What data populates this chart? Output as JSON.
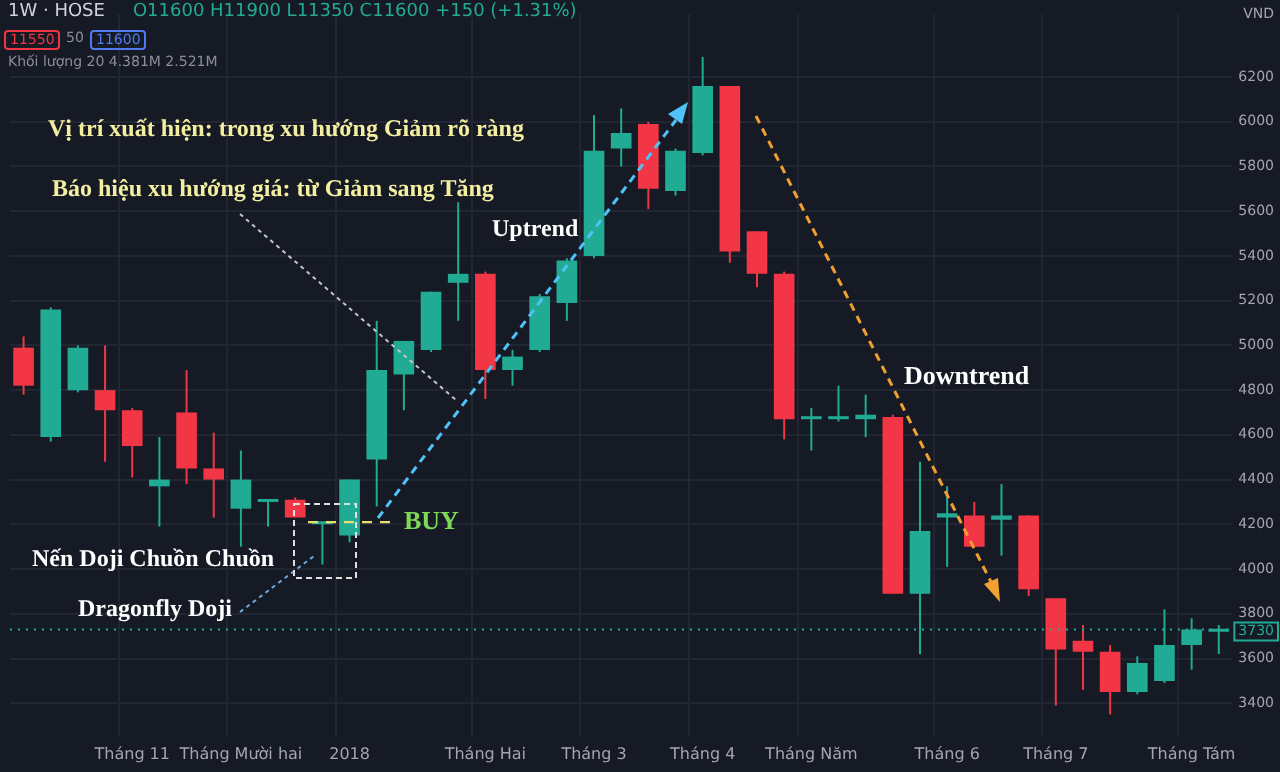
{
  "chart_data": {
    "type": "candlestick",
    "title": "1W · HOSE",
    "subtitle": "O11600 H11900 L11350 C11600 +150 (+1.31%)",
    "ylabel": "VND",
    "annotations": [
      "Vị trí xuất hiện: trong xu hướng Giảm rõ ràng",
      "Báo hiệu xu hướng giá: từ Giảm sang Tăng",
      "Uptrend",
      "Downtrend",
      "Nến Doji Chuồn Chuồn",
      "Dragonfly Doji",
      "Khối lượng 20  4.381M  2.521M",
      "11550",
      "50",
      "11600"
    ],
    "categories": [
      null,
      null,
      null,
      null,
      "Tháng 11",
      null,
      null,
      null,
      "Tháng Mười hai",
      null,
      null,
      null,
      "2018",
      null,
      null,
      null,
      null,
      "Tháng Hai",
      null,
      null,
      null,
      "Tháng 3",
      null,
      null,
      null,
      "Tháng 4",
      null,
      null,
      null,
      "Tháng Năm",
      null,
      null,
      null,
      null,
      "Tháng 6",
      null,
      null,
      null,
      "Tháng 7",
      null,
      null,
      null,
      null,
      "Tháng Tám",
      null
    ],
    "ohlc": [
      [
        4990,
        5040,
        4780,
        4820
      ],
      [
        4590,
        5170,
        4570,
        5160
      ],
      [
        4800,
        5000,
        4790,
        4990
      ],
      [
        4800,
        5000,
        4480,
        4710
      ],
      [
        4710,
        4720,
        4410,
        4550
      ],
      [
        4370,
        4590,
        4190,
        4400
      ],
      [
        4700,
        4890,
        4380,
        4450
      ],
      [
        4450,
        4610,
        4230,
        4400
      ],
      [
        4270,
        4530,
        4100,
        4400
      ],
      [
        4300,
        4310,
        4190,
        4310
      ],
      [
        4310,
        4320,
        4230,
        4230
      ],
      [
        4200,
        4210,
        4020,
        4210
      ],
      [
        4150,
        4400,
        4120,
        4400
      ],
      [
        4490,
        5110,
        4280,
        4890
      ],
      [
        4870,
        5020,
        4710,
        5020
      ],
      [
        4980,
        5240,
        4970,
        5240
      ],
      [
        5280,
        5640,
        5110,
        5320
      ],
      [
        5320,
        5330,
        4760,
        4890
      ],
      [
        4890,
        4980,
        4820,
        4950
      ],
      [
        4980,
        5230,
        4970,
        5220
      ],
      [
        5190,
        5390,
        5110,
        5380
      ],
      [
        5400,
        6030,
        5390,
        5870
      ],
      [
        5880,
        6060,
        5800,
        5950
      ],
      [
        5990,
        6000,
        5610,
        5700
      ],
      [
        5690,
        5880,
        5670,
        5870
      ],
      [
        5860,
        6290,
        5850,
        6160
      ],
      [
        6160,
        6160,
        5370,
        5420
      ],
      [
        5510,
        5510,
        5260,
        5320
      ],
      [
        5320,
        5330,
        4580,
        4670
      ],
      [
        4670,
        4720,
        4530,
        4680
      ],
      [
        4670,
        4820,
        4660,
        4680
      ],
      [
        4670,
        4780,
        4590,
        4690
      ],
      [
        4680,
        4690,
        3890,
        3890
      ],
      [
        3890,
        4480,
        3620,
        4170
      ],
      [
        4230,
        4370,
        4010,
        4250
      ],
      [
        4240,
        4300,
        4100,
        4100
      ],
      [
        4220,
        4380,
        4060,
        4240
      ],
      [
        4240,
        4240,
        3880,
        3910
      ],
      [
        3870,
        3870,
        3390,
        3640
      ],
      [
        3680,
        3750,
        3460,
        3630
      ],
      [
        3630,
        3660,
        3350,
        3450
      ],
      [
        3450,
        3610,
        3440,
        3580
      ],
      [
        3500,
        3820,
        3490,
        3660
      ],
      [
        3660,
        3780,
        3550,
        3730
      ],
      [
        3720,
        3750,
        3620,
        3730
      ]
    ],
    "colors": [
      "#f23645",
      "#22ab94",
      "#22ab94",
      "#f23645",
      "#f23645",
      "#22ab94",
      "#f23645",
      "#f23645",
      "#22ab94",
      "#22ab94",
      "#f23645",
      "#22ab94",
      "#22ab94",
      "#22ab94",
      "#22ab94",
      "#22ab94",
      "#22ab94",
      "#f23645",
      "#22ab94",
      "#22ab94",
      "#22ab94",
      "#22ab94",
      "#22ab94",
      "#f23645",
      "#22ab94",
      "#22ab94",
      "#f23645",
      "#f23645",
      "#f23645",
      "#22ab94",
      "#22ab94",
      "#22ab94",
      "#f23645",
      "#22ab94",
      "#22ab94",
      "#f23645",
      "#22ab94",
      "#f23645",
      "#f23645",
      "#f23645",
      "#f23645",
      "#22ab94",
      "#22ab94",
      "#22ab94",
      "#22ab94"
    ],
    "ylim": [
      3250,
      6480
    ],
    "yticks": [
      3400,
      3600,
      3800,
      4000,
      4200,
      4400,
      4600,
      4800,
      5000,
      5200,
      5400,
      5600,
      5800,
      6000,
      6200
    ],
    "grid": true,
    "ref_lines": [
      {
        "axis": "y",
        "value": 3730,
        "label": "3730",
        "color": "#22ab94",
        "line_style": "dotted"
      },
      {
        "axis": "y",
        "value": 4210,
        "label": "BUY",
        "color": "#e8e070",
        "line_style": "dashed"
      }
    ]
  }
}
